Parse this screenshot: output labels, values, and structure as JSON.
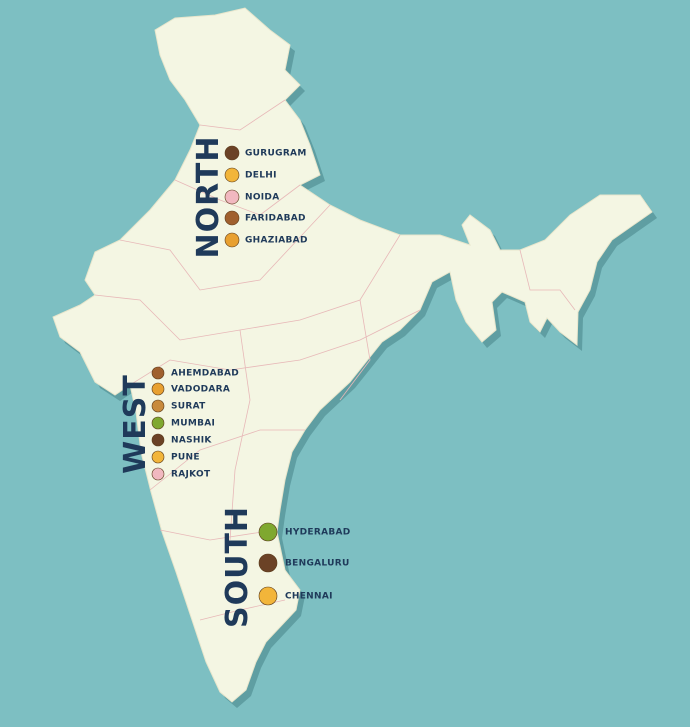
{
  "regions": [
    {
      "name": "NORTH",
      "cities": [
        "GURUGRAM",
        "DELHI",
        "NOIDA",
        "FARIDABAD",
        "GHAZIABAD"
      ]
    },
    {
      "name": "WEST",
      "cities": [
        "AHEMDABAD",
        "VADODARA",
        "SURAT",
        "MUMBAI",
        "NASHIK",
        "PUNE",
        "RAJKOT"
      ]
    },
    {
      "name": "SOUTH",
      "cities": [
        "HYDERABAD",
        "BENGALURU",
        "CHENNAI"
      ]
    }
  ]
}
